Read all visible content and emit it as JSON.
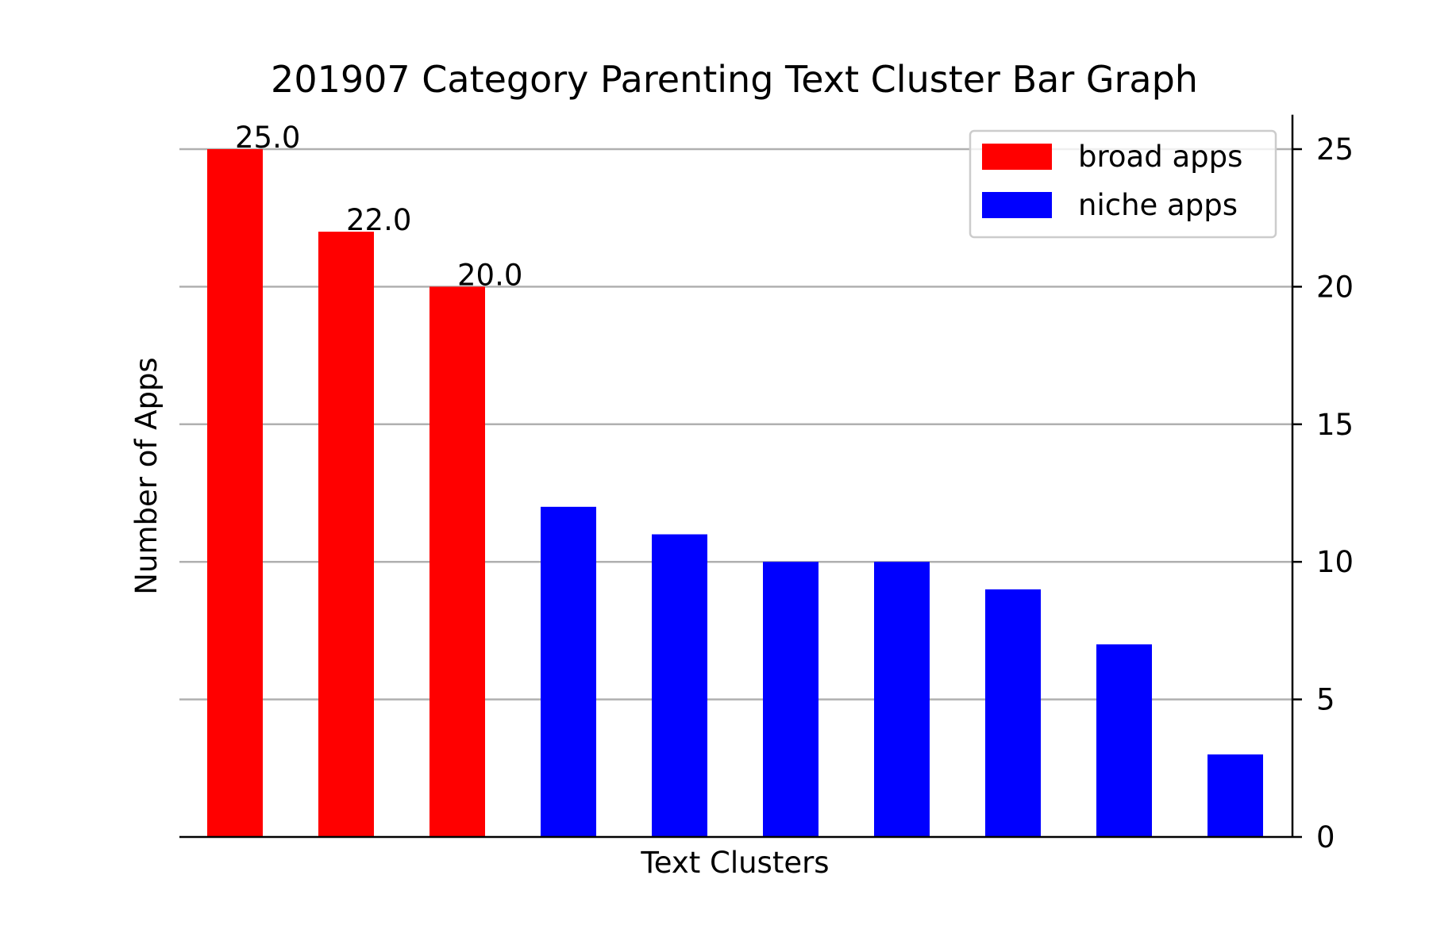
{
  "chart_data": {
    "type": "bar",
    "title": "201907 Category Parenting Text Cluster Bar Graph",
    "xlabel": "Text Clusters",
    "ylabel": "Number of Apps",
    "ylim": [
      0,
      26.25
    ],
    "yticks": [
      0,
      5,
      10,
      15,
      20,
      25
    ],
    "grid": true,
    "y_axis_side": "right",
    "legend_position": "top-right",
    "series": [
      {
        "name": "broad apps",
        "color": "#ff0000",
        "x_index": [
          0,
          1,
          2
        ],
        "values": [
          25.0,
          22.0,
          20.0
        ],
        "labels": [
          "25.0",
          "22.0",
          "20.0"
        ]
      },
      {
        "name": "niche apps",
        "color": "#0000ff",
        "x_index": [
          3,
          4,
          5,
          6,
          7,
          8,
          9
        ],
        "values": [
          12,
          11,
          10,
          10,
          9,
          7,
          3
        ]
      }
    ]
  }
}
